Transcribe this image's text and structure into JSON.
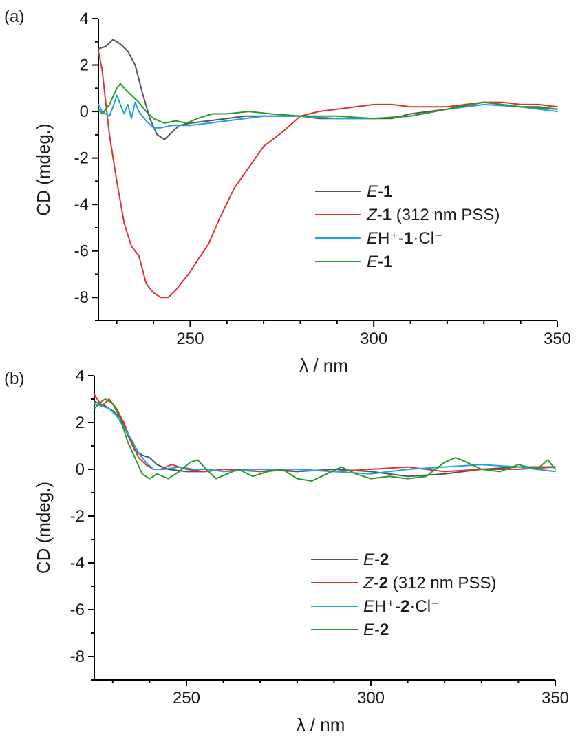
{
  "panel_labels": [
    "(a)",
    "(b)"
  ],
  "legend_a": [
    {
      "italic": "E",
      "sep": "-",
      "bold": "1",
      "rest": "",
      "color": "#555555"
    },
    {
      "italic": "Z",
      "sep": "-",
      "bold": "1",
      "rest": " (312 nm PSS)",
      "color": "#d9352b"
    },
    {
      "italic": "E",
      "sep": "H⁺-",
      "bold": "1",
      "rest": "·Cl⁻",
      "color": "#1fa2e0"
    },
    {
      "italic": "E",
      "sep": "-",
      "bold": "1",
      "rest": "",
      "color": "#2a9a2a"
    }
  ],
  "legend_b": [
    {
      "italic": "E",
      "sep": "-",
      "bold": "2",
      "rest": "",
      "color": "#555555"
    },
    {
      "italic": "Z",
      "sep": "-",
      "bold": "2",
      "rest": " (312 nm PSS)",
      "color": "#d9352b"
    },
    {
      "italic": "E",
      "sep": "H⁺-",
      "bold": "2",
      "rest": "·Cl⁻",
      "color": "#1fa2e0"
    },
    {
      "italic": "E",
      "sep": "-",
      "bold": "2",
      "rest": "",
      "color": "#2a9a2a"
    }
  ],
  "chart_data": [
    {
      "type": "line",
      "panel": "(a)",
      "xlabel": "λ / nm",
      "ylabel": "CD (mdeg.)",
      "xlim": [
        225,
        350
      ],
      "ylim": [
        -9,
        4
      ],
      "xticks": [
        250,
        300,
        350
      ],
      "yticks": [
        4,
        2,
        0,
        -2,
        -4,
        -6,
        -8
      ],
      "legend_position": "right-center",
      "grid": false,
      "series": [
        {
          "color": "#555555",
          "x": [
            225,
            227,
            229,
            231,
            233,
            235,
            237,
            239,
            241,
            243,
            245,
            247,
            250,
            255,
            260,
            265,
            270,
            275,
            280,
            285,
            290,
            295,
            300,
            305,
            310,
            315,
            320,
            325,
            330,
            335,
            340,
            345,
            350
          ],
          "y": [
            2.7,
            2.8,
            3.1,
            2.9,
            2.6,
            2.0,
            0.8,
            -0.3,
            -1.0,
            -1.2,
            -0.9,
            -0.6,
            -0.5,
            -0.4,
            -0.3,
            -0.2,
            -0.2,
            -0.2,
            -0.2,
            -0.3,
            -0.3,
            -0.3,
            -0.3,
            -0.3,
            -0.1,
            0.0,
            0.1,
            0.3,
            0.4,
            0.3,
            0.2,
            0.2,
            0.1
          ]
        },
        {
          "color": "#d9352b",
          "x": [
            225,
            226,
            228,
            230,
            232,
            234,
            236,
            238,
            240,
            242,
            244,
            246,
            248,
            250,
            252,
            255,
            258,
            262,
            266,
            270,
            275,
            280,
            285,
            290,
            295,
            300,
            305,
            310,
            315,
            320,
            325,
            330,
            335,
            340,
            345,
            350
          ],
          "y": [
            2.6,
            1.8,
            -1.0,
            -3.0,
            -4.8,
            -5.8,
            -6.2,
            -7.4,
            -7.8,
            -8.0,
            -8.0,
            -7.7,
            -7.3,
            -6.9,
            -6.4,
            -5.7,
            -4.6,
            -3.3,
            -2.4,
            -1.5,
            -0.9,
            -0.2,
            0.0,
            0.1,
            0.2,
            0.3,
            0.3,
            0.2,
            0.2,
            0.2,
            0.3,
            0.4,
            0.4,
            0.3,
            0.3,
            0.2
          ]
        },
        {
          "color": "#1fa2e0",
          "x": [
            225,
            226,
            228,
            229,
            230,
            231,
            232,
            233,
            234,
            235,
            236,
            238,
            240,
            242,
            245,
            250,
            255,
            260,
            265,
            270,
            280,
            290,
            300,
            310,
            320,
            330,
            340,
            350
          ],
          "y": [
            0.3,
            0.0,
            -0.2,
            0.2,
            0.7,
            0.3,
            -0.1,
            0.3,
            -0.3,
            0.4,
            0.0,
            -0.4,
            -0.7,
            -0.7,
            -0.6,
            -0.6,
            -0.5,
            -0.4,
            -0.3,
            -0.2,
            -0.2,
            -0.3,
            -0.3,
            -0.2,
            0.1,
            0.3,
            0.2,
            0.0
          ]
        },
        {
          "color": "#2a9a2a",
          "x": [
            225,
            226,
            228,
            230,
            231,
            232,
            234,
            236,
            238,
            240,
            243,
            246,
            249,
            252,
            256,
            260,
            266,
            272,
            280,
            290,
            300,
            310,
            320,
            330,
            340,
            350
          ],
          "y": [
            0.1,
            -0.1,
            0.3,
            1.0,
            1.2,
            1.0,
            0.7,
            0.4,
            0.0,
            -0.3,
            -0.5,
            -0.4,
            -0.5,
            -0.3,
            -0.1,
            -0.1,
            0.0,
            -0.1,
            -0.2,
            -0.2,
            -0.3,
            -0.2,
            0.1,
            0.4,
            0.2,
            0.1
          ]
        }
      ]
    },
    {
      "type": "line",
      "panel": "(b)",
      "xlabel": "λ / nm",
      "ylabel": "CD (mdeg.)",
      "xlim": [
        225,
        350
      ],
      "ylim": [
        -9,
        4
      ],
      "xticks": [
        250,
        300,
        350
      ],
      "yticks": [
        4,
        2,
        0,
        -2,
        -4,
        -6,
        -8
      ],
      "legend_position": "right-bottom",
      "grid": false,
      "series": [
        {
          "color": "#555555",
          "x": [
            225,
            228,
            230,
            232,
            234,
            236,
            238,
            240,
            242,
            245,
            250,
            255,
            260,
            270,
            280,
            290,
            300,
            310,
            320,
            330,
            340,
            350
          ],
          "y": [
            2.9,
            2.7,
            2.5,
            2.2,
            1.5,
            0.8,
            0.6,
            0.5,
            0.2,
            0.0,
            -0.1,
            -0.1,
            0.0,
            0.0,
            -0.1,
            0.0,
            -0.1,
            -0.3,
            -0.2,
            0.0,
            0.1,
            0.1
          ]
        },
        {
          "color": "#d9352b",
          "x": [
            225,
            227,
            229,
            231,
            233,
            235,
            237,
            239,
            241,
            243,
            246,
            250,
            255,
            260,
            270,
            280,
            290,
            300,
            310,
            320,
            330,
            340,
            350
          ],
          "y": [
            3.2,
            2.7,
            3.0,
            2.6,
            2.0,
            1.2,
            0.5,
            0.2,
            0.0,
            0.0,
            0.2,
            0.0,
            -0.1,
            0.0,
            -0.1,
            0.0,
            -0.1,
            0.0,
            0.1,
            -0.1,
            0.0,
            0.0,
            0.1
          ]
        },
        {
          "color": "#1fa2e0",
          "x": [
            225,
            227,
            229,
            231,
            233,
            235,
            237,
            239,
            241,
            244,
            248,
            252,
            256,
            260,
            270,
            280,
            290,
            300,
            310,
            320,
            330,
            340,
            350
          ],
          "y": [
            2.8,
            2.7,
            2.6,
            2.3,
            1.8,
            1.3,
            0.7,
            0.3,
            0.0,
            0.0,
            0.1,
            0.0,
            0.0,
            -0.1,
            0.0,
            0.0,
            -0.1,
            -0.2,
            0.0,
            0.1,
            0.2,
            0.1,
            -0.1
          ]
        },
        {
          "color": "#2a9a2a",
          "x": [
            225,
            227,
            228,
            230,
            232,
            234,
            236,
            238,
            240,
            242,
            245,
            248,
            251,
            253,
            256,
            258,
            261,
            264,
            268,
            272,
            276,
            280,
            284,
            288,
            292,
            296,
            300,
            305,
            310,
            315,
            320,
            323,
            326,
            330,
            335,
            340,
            345,
            348,
            350
          ],
          "y": [
            2.6,
            2.9,
            3.0,
            2.8,
            2.2,
            1.2,
            0.5,
            -0.2,
            -0.4,
            -0.2,
            -0.4,
            -0.1,
            0.3,
            0.4,
            -0.1,
            -0.4,
            -0.2,
            0.0,
            -0.3,
            -0.1,
            0.0,
            -0.4,
            -0.5,
            -0.2,
            0.1,
            -0.2,
            -0.4,
            -0.3,
            -0.4,
            -0.3,
            0.3,
            0.5,
            0.3,
            0.0,
            -0.1,
            0.2,
            0.0,
            0.4,
            0.0
          ]
        }
      ]
    }
  ]
}
